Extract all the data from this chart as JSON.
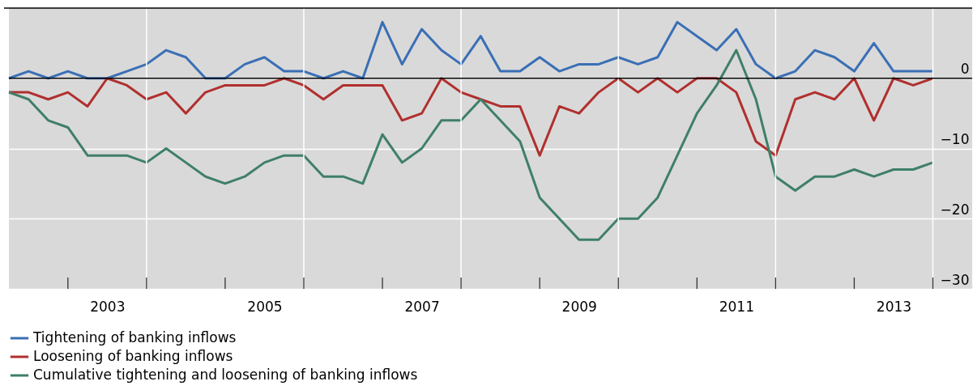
{
  "chart_data": {
    "type": "line",
    "x": [
      2002.25,
      2002.5,
      2002.75,
      2003,
      2003.25,
      2003.5,
      2003.75,
      2004,
      2004.25,
      2004.5,
      2004.75,
      2005,
      2005.25,
      2005.5,
      2005.75,
      2006,
      2006.25,
      2006.5,
      2006.75,
      2007,
      2007.25,
      2007.5,
      2007.75,
      2008,
      2008.25,
      2008.5,
      2008.75,
      2009,
      2009.25,
      2009.5,
      2009.75,
      2010,
      2010.25,
      2010.5,
      2010.75,
      2011,
      2011.25,
      2011.5,
      2011.75,
      2012,
      2012.25,
      2012.5,
      2012.75,
      2013,
      2013.25,
      2013.5,
      2013.75,
      2014
    ],
    "series": [
      {
        "name": "Tightening of banking inflows",
        "color": "#3a6fb5",
        "values": [
          0,
          1,
          0,
          1,
          0,
          0,
          1,
          2,
          4,
          3,
          0,
          0,
          2,
          3,
          1,
          1,
          0,
          1,
          0,
          8,
          2,
          7,
          4,
          2,
          6,
          1,
          1,
          3,
          1,
          2,
          2,
          3,
          2,
          3,
          8,
          6,
          4,
          7,
          2,
          0,
          1,
          4,
          3,
          1,
          5,
          1,
          1,
          1
        ]
      },
      {
        "name": "Loosening of banking inflows",
        "color": "#b0302e",
        "values": [
          -2,
          -2,
          -3,
          -2,
          -4,
          0,
          -1,
          -3,
          -2,
          -5,
          -2,
          -1,
          -1,
          -1,
          0,
          -1,
          -3,
          -1,
          -1,
          -1,
          -6,
          -5,
          0,
          -2,
          -3,
          -4,
          -4,
          -11,
          -4,
          -5,
          -2,
          0,
          -2,
          0,
          -2,
          0,
          0,
          -2,
          -9,
          -11,
          -3,
          -2,
          -3,
          0,
          -6,
          0,
          -1,
          0
        ]
      },
      {
        "name": "Cumulative tightening and loosening of banking inflows",
        "color": "#3f7f68",
        "values": [
          -2,
          -3,
          -6,
          -7,
          -11,
          -11,
          -11,
          -12,
          -10,
          -12,
          -14,
          -15,
          -14,
          -12,
          -11,
          -11,
          -14,
          -14,
          -15,
          -8,
          -12,
          -10,
          -6,
          -6,
          -3,
          -6,
          -9,
          -17,
          -20,
          -23,
          -23,
          -20,
          -20,
          -17,
          -11,
          -5,
          -1,
          4,
          -3,
          -14,
          -16,
          -14,
          -14,
          -13,
          -14,
          -13,
          -13,
          -12
        ]
      }
    ],
    "xlim": [
      2002.25,
      2014.5
    ],
    "xticks": [
      {
        "value": 2003,
        "label": null
      },
      {
        "value": 2003.5,
        "label": "2003"
      },
      {
        "value": 2004,
        "label": null
      },
      {
        "value": 2005,
        "label": null
      },
      {
        "value": 2005.5,
        "label": "2005"
      },
      {
        "value": 2006,
        "label": null
      },
      {
        "value": 2007,
        "label": null
      },
      {
        "value": 2007.5,
        "label": "2007"
      },
      {
        "value": 2008,
        "label": null
      },
      {
        "value": 2009,
        "label": null
      },
      {
        "value": 2009.5,
        "label": "2009"
      },
      {
        "value": 2010,
        "label": null
      },
      {
        "value": 2011,
        "label": null
      },
      {
        "value": 2011.5,
        "label": "2011"
      },
      {
        "value": 2012,
        "label": null
      },
      {
        "value": 2013,
        "label": null
      },
      {
        "value": 2013.5,
        "label": "2013"
      },
      {
        "value": 2014,
        "label": null
      }
    ],
    "ylim": [
      -30,
      10
    ],
    "yticks": [
      0,
      {
        "value": -10,
        "label": "−10"
      },
      {
        "value": -20,
        "label": "−20"
      },
      {
        "value": -30,
        "label": "−30"
      }
    ],
    "ref_lines": [
      {
        "axis": "y",
        "value": 0,
        "color": "#000000"
      }
    ],
    "grid": true,
    "legend": "bottom left",
    "marker": "none",
    "line_style": "solid"
  }
}
